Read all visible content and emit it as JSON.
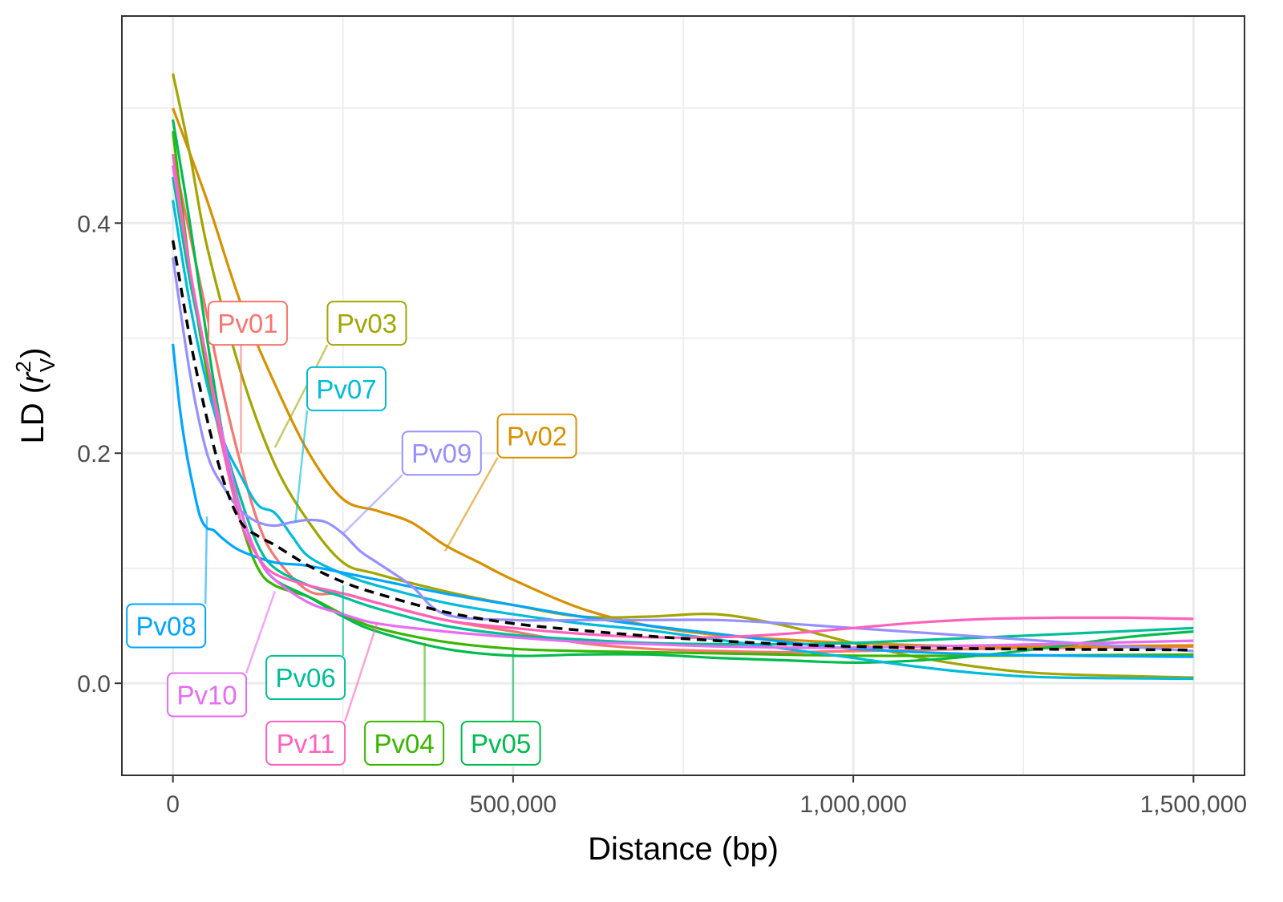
{
  "chart_data": {
    "type": "line",
    "xlabel": "Distance (bp)",
    "ylabel": {
      "main": "LD (",
      "r": "r",
      "sup": "2",
      "sub": "V",
      "close": ")"
    },
    "xlim": [
      -75000,
      1575000
    ],
    "ylim": [
      -0.08,
      0.58
    ],
    "x_ticks": [
      0,
      500000,
      1000000,
      1500000
    ],
    "x_tick_labels": [
      "0",
      "500,000",
      "1,000,000",
      "1,500,000"
    ],
    "y_ticks": [
      0.0,
      0.2,
      0.4
    ],
    "y_tick_labels": [
      "0.0",
      "0.2",
      "0.4"
    ],
    "grid": true,
    "series": [
      {
        "name": "Pv01",
        "color": "#F8766D",
        "x": [
          0,
          25000,
          50000,
          75000,
          100000,
          125000,
          150000,
          200000,
          250000,
          300000,
          400000,
          500000,
          600000,
          700000,
          800000,
          900000,
          1000000,
          1200000,
          1500000
        ],
        "y": [
          0.46,
          0.39,
          0.32,
          0.25,
          0.19,
          0.14,
          0.11,
          0.08,
          0.078,
          0.07,
          0.055,
          0.045,
          0.035,
          0.03,
          0.028,
          0.027,
          0.028,
          0.03,
          0.032
        ]
      },
      {
        "name": "Pv02",
        "color": "#D89000",
        "x": [
          0,
          50000,
          100000,
          150000,
          200000,
          250000,
          300000,
          350000,
          400000,
          450000,
          500000,
          600000,
          700000,
          800000,
          900000,
          1000000,
          1200000,
          1500000
        ],
        "y": [
          0.5,
          0.42,
          0.33,
          0.26,
          0.2,
          0.16,
          0.15,
          0.14,
          0.12,
          0.105,
          0.09,
          0.065,
          0.05,
          0.042,
          0.038,
          0.035,
          0.032,
          0.033
        ]
      },
      {
        "name": "Pv03",
        "color": "#A3A500",
        "x": [
          0,
          25000,
          50000,
          100000,
          150000,
          200000,
          250000,
          300000,
          400000,
          500000,
          600000,
          700000,
          800000,
          900000,
          1000000,
          1100000,
          1200000,
          1300000,
          1500000
        ],
        "y": [
          0.53,
          0.46,
          0.38,
          0.27,
          0.19,
          0.14,
          0.105,
          0.095,
          0.08,
          0.068,
          0.058,
          0.058,
          0.06,
          0.05,
          0.035,
          0.022,
          0.013,
          0.008,
          0.005
        ]
      },
      {
        "name": "Pv04",
        "color": "#39B600",
        "x": [
          0,
          25000,
          50000,
          75000,
          100000,
          125000,
          150000,
          200000,
          250000,
          300000,
          400000,
          500000,
          600000,
          700000,
          800000,
          1000000,
          1200000,
          1500000
        ],
        "y": [
          0.48,
          0.36,
          0.27,
          0.2,
          0.14,
          0.1,
          0.085,
          0.075,
          0.06,
          0.048,
          0.036,
          0.03,
          0.028,
          0.027,
          0.026,
          0.024,
          0.024,
          0.025
        ]
      },
      {
        "name": "Pv05",
        "color": "#00BB4E",
        "x": [
          0,
          25000,
          50000,
          75000,
          100000,
          125000,
          150000,
          200000,
          250000,
          300000,
          400000,
          500000,
          600000,
          700000,
          800000,
          900000,
          1000000,
          1100000,
          1200000,
          1300000,
          1400000,
          1500000
        ],
        "y": [
          0.49,
          0.4,
          0.3,
          0.21,
          0.15,
          0.11,
          0.09,
          0.075,
          0.058,
          0.045,
          0.03,
          0.024,
          0.025,
          0.025,
          0.022,
          0.02,
          0.018,
          0.02,
          0.025,
          0.032,
          0.04,
          0.045
        ]
      },
      {
        "name": "Pv06",
        "color": "#00BF96",
        "x": [
          0,
          25000,
          50000,
          75000,
          100000,
          125000,
          150000,
          200000,
          250000,
          300000,
          400000,
          500000,
          600000,
          700000,
          800000,
          900000,
          1000000,
          1200000,
          1500000
        ],
        "y": [
          0.44,
          0.35,
          0.28,
          0.21,
          0.16,
          0.12,
          0.1,
          0.085,
          0.075,
          0.065,
          0.05,
          0.042,
          0.038,
          0.035,
          0.034,
          0.034,
          0.035,
          0.04,
          0.048
        ]
      },
      {
        "name": "Pv07",
        "color": "#00BBDA",
        "x": [
          0,
          25000,
          50000,
          75000,
          100000,
          125000,
          150000,
          175000,
          200000,
          250000,
          300000,
          400000,
          500000,
          600000,
          700000,
          800000,
          900000,
          1000000,
          1100000,
          1200000,
          1300000,
          1500000
        ],
        "y": [
          0.42,
          0.33,
          0.26,
          0.21,
          0.18,
          0.155,
          0.148,
          0.128,
          0.11,
          0.095,
          0.085,
          0.07,
          0.06,
          0.052,
          0.046,
          0.038,
          0.03,
          0.022,
          0.014,
          0.008,
          0.005,
          0.004
        ]
      },
      {
        "name": "Pv08",
        "color": "#00A5FF",
        "x": [
          0,
          10000,
          20000,
          30000,
          40000,
          50000,
          60000,
          75000,
          100000,
          150000,
          200000,
          300000,
          400000,
          500000,
          600000,
          700000,
          800000,
          900000,
          1000000,
          1200000,
          1500000
        ],
        "y": [
          0.295,
          0.24,
          0.2,
          0.17,
          0.145,
          0.135,
          0.133,
          0.125,
          0.115,
          0.105,
          0.102,
          0.09,
          0.078,
          0.068,
          0.058,
          0.05,
          0.043,
          0.036,
          0.03,
          0.025,
          0.023
        ]
      },
      {
        "name": "Pv09",
        "color": "#9590FF",
        "x": [
          0,
          25000,
          50000,
          75000,
          100000,
          125000,
          150000,
          175000,
          200000,
          225000,
          250000,
          275000,
          300000,
          350000,
          400000,
          500000,
          600000,
          700000,
          800000,
          900000,
          1000000,
          1200000,
          1500000
        ],
        "y": [
          0.37,
          0.27,
          0.2,
          0.17,
          0.15,
          0.14,
          0.137,
          0.14,
          0.142,
          0.14,
          0.13,
          0.115,
          0.105,
          0.085,
          0.06,
          0.055,
          0.055,
          0.055,
          0.055,
          0.052,
          0.048,
          0.04,
          0.028
        ]
      },
      {
        "name": "Pv10",
        "color": "#E76BF3",
        "x": [
          0,
          25000,
          50000,
          75000,
          100000,
          125000,
          150000,
          200000,
          250000,
          300000,
          400000,
          500000,
          600000,
          700000,
          800000,
          900000,
          1000000,
          1200000,
          1500000
        ],
        "y": [
          0.45,
          0.36,
          0.28,
          0.21,
          0.15,
          0.11,
          0.09,
          0.07,
          0.06,
          0.052,
          0.045,
          0.04,
          0.036,
          0.034,
          0.032,
          0.031,
          0.031,
          0.033,
          0.037
        ]
      },
      {
        "name": "Pv11",
        "color": "#FF62BC",
        "x": [
          0,
          25000,
          50000,
          75000,
          100000,
          125000,
          150000,
          200000,
          250000,
          300000,
          400000,
          500000,
          600000,
          700000,
          800000,
          900000,
          1000000,
          1100000,
          1200000,
          1300000,
          1400000,
          1500000
        ],
        "y": [
          0.46,
          0.36,
          0.28,
          0.2,
          0.14,
          0.11,
          0.095,
          0.085,
          0.078,
          0.07,
          0.055,
          0.048,
          0.043,
          0.04,
          0.04,
          0.043,
          0.048,
          0.053,
          0.056,
          0.057,
          0.057,
          0.056
        ]
      }
    ],
    "mean_line": {
      "style": "dashed",
      "color": "#000000",
      "x": [
        0,
        25000,
        50000,
        75000,
        100000,
        125000,
        150000,
        200000,
        250000,
        300000,
        400000,
        500000,
        600000,
        700000,
        800000,
        900000,
        1000000,
        1200000,
        1500000
      ],
      "y": [
        0.385,
        0.3,
        0.23,
        0.175,
        0.14,
        0.128,
        0.12,
        0.102,
        0.088,
        0.078,
        0.062,
        0.052,
        0.046,
        0.041,
        0.037,
        0.034,
        0.032,
        0.03,
        0.029
      ]
    },
    "labels": [
      {
        "series": "Pv01",
        "text": "Pv01",
        "at": [
          110000,
          0.313
        ],
        "to": [
          100000,
          0.2
        ]
      },
      {
        "series": "Pv03",
        "text": "Pv03",
        "at": [
          285000,
          0.313
        ],
        "to": [
          150000,
          0.205
        ]
      },
      {
        "series": "Pv07",
        "text": "Pv07",
        "at": [
          255000,
          0.256
        ],
        "to": [
          180000,
          0.14
        ]
      },
      {
        "series": "Pv09",
        "text": "Pv09",
        "at": [
          395000,
          0.2
        ],
        "to": [
          250000,
          0.13
        ]
      },
      {
        "series": "Pv02",
        "text": "Pv02",
        "at": [
          535000,
          0.215
        ],
        "to": [
          400000,
          0.115
        ]
      },
      {
        "series": "Pv08",
        "text": "Pv08",
        "at": [
          -10000,
          0.05
        ],
        "to": [
          50000,
          0.145
        ]
      },
      {
        "series": "Pv10",
        "text": "Pv10",
        "at": [
          50000,
          -0.01
        ],
        "to": [
          150000,
          0.08
        ]
      },
      {
        "series": "Pv06",
        "text": "Pv06",
        "at": [
          195000,
          0.005
        ],
        "to": [
          250000,
          0.085
        ]
      },
      {
        "series": "Pv11",
        "text": "Pv11",
        "at": [
          195000,
          -0.052
        ],
        "to": [
          300000,
          0.052
        ]
      },
      {
        "series": "Pv04",
        "text": "Pv04",
        "at": [
          340000,
          -0.052
        ],
        "to": [
          370000,
          0.035
        ]
      },
      {
        "series": "Pv05",
        "text": "Pv05",
        "at": [
          482000,
          -0.052
        ],
        "to": [
          500000,
          0.03
        ]
      }
    ]
  }
}
